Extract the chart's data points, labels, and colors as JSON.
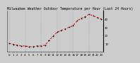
{
  "title": "Milwaukee Weather Outdoor Temperature per Hour (Last 24 Hours)",
  "x_values": [
    0,
    1,
    2,
    3,
    4,
    5,
    6,
    7,
    8,
    9,
    10,
    11,
    12,
    13,
    14,
    15,
    16,
    17,
    18,
    19,
    20,
    21,
    22,
    23
  ],
  "y_values": [
    10,
    9,
    8,
    7,
    7,
    6,
    6,
    7,
    7,
    8,
    14,
    19,
    24,
    26,
    28,
    30,
    32,
    38,
    41,
    43,
    46,
    44,
    42,
    40
  ],
  "line_color": "#dd0000",
  "marker_color": "#000000",
  "bg_color": "#cccccc",
  "plot_bg": "#cccccc",
  "grid_color": "#888888",
  "title_color": "#000000",
  "title_fontsize": 3.5,
  "tick_fontsize": 2.8,
  "ylim": [
    0,
    50
  ],
  "ytick_values": [
    10,
    20,
    30,
    40
  ],
  "xtick_step": 1,
  "vgrid_positions": [
    0,
    4,
    8,
    12,
    16,
    20
  ]
}
